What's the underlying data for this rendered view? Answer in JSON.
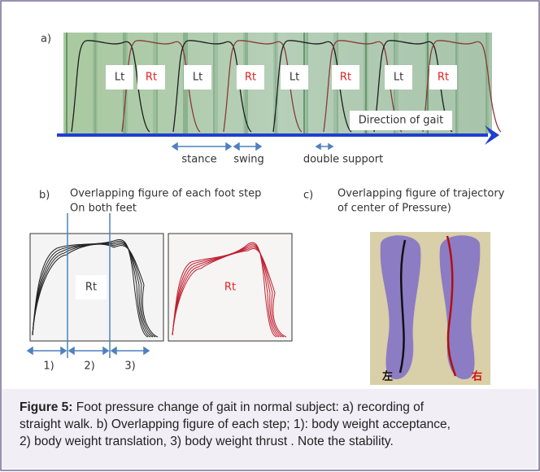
{
  "panel_a": {
    "label": "a)",
    "feet": [
      "Lt",
      "Rt",
      "Lt",
      "Rt",
      "Lt",
      "Rt",
      "Lt",
      "Rt"
    ],
    "direction": "Direction of gait",
    "phases": [
      "stance",
      "swing",
      "double support"
    ]
  },
  "panel_b": {
    "label": "b)",
    "title_lines": [
      "Overlapping figure of each foot step",
      "On both feet"
    ],
    "left_foot": "Rt",
    "right_foot": "Rt",
    "phases": [
      "1)",
      "2)",
      "3)"
    ]
  },
  "panel_c": {
    "label": "c)",
    "title_lines": [
      "Overlapping figure of trajectory",
      "of center of Pressure)"
    ],
    "left_mark": "左",
    "right_mark": "右"
  },
  "caption": {
    "label": "Figure 5:",
    "lines": [
      "Foot pressure change of gait in normal subject: a) recording of",
      "straight walk. b) Overlapping figure of each step; 1): body weight acceptance,",
      "2) body weight translation, 3) body weight thrust . Note the stability."
    ]
  }
}
